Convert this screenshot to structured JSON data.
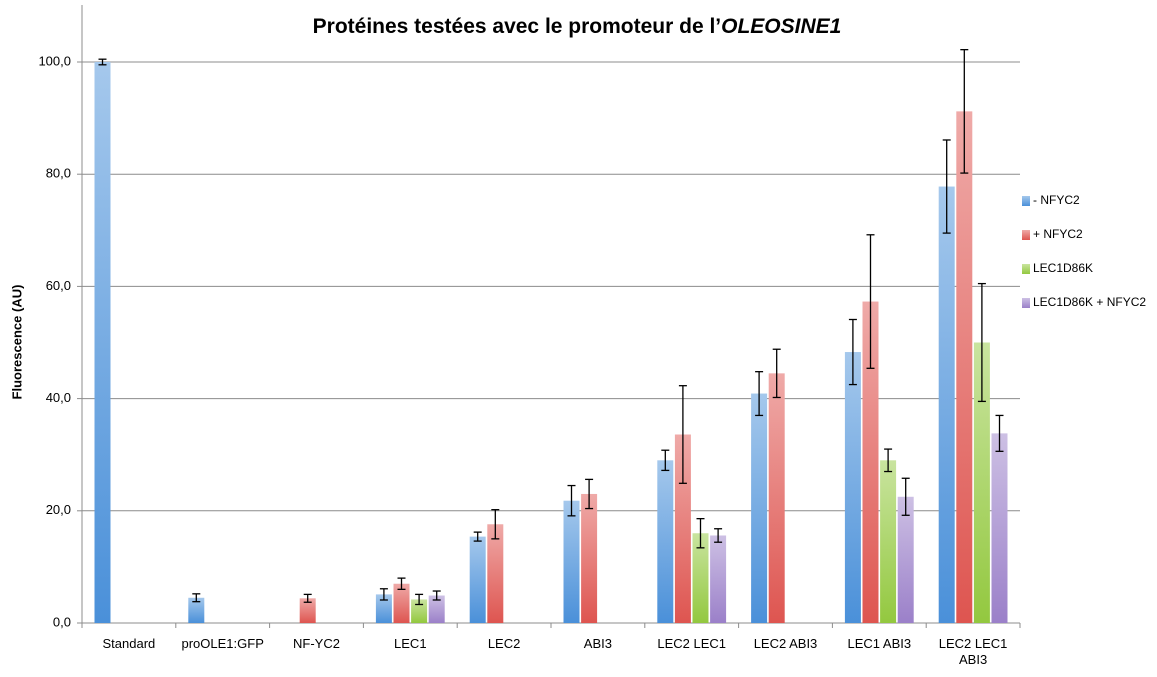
{
  "chart_data": {
    "type": "bar",
    "title": [
      "Protéines testées avec le promoteur de l’",
      "OLEOSINE1"
    ],
    "y_label": "Fluorescence (AU)",
    "categories": [
      "Standard",
      "proOLE1:GFP",
      "NF-YC2",
      "LEC1",
      "LEC2",
      "ABI3",
      "LEC2 LEC1",
      "LEC2 ABI3",
      "LEC1 ABI3",
      "LEC2 LEC1 ABI3"
    ],
    "series": [
      {
        "name": "- NFYC2",
        "color": "#4a90d9",
        "values": [
          100,
          4.5,
          null,
          5.1,
          15.4,
          21.8,
          29.0,
          40.9,
          48.3,
          77.8
        ],
        "errors": [
          0.5,
          0.7,
          null,
          1.0,
          0.8,
          2.7,
          1.8,
          3.9,
          5.8,
          8.3
        ]
      },
      {
        "name": "+ NFYC2",
        "color": "#de5550",
        "values": [
          null,
          null,
          4.4,
          7.0,
          17.6,
          23.0,
          33.6,
          44.5,
          57.3,
          91.2
        ],
        "errors": [
          null,
          null,
          0.7,
          1.0,
          2.6,
          2.6,
          8.7,
          4.3,
          11.9,
          11.0
        ]
      },
      {
        "name": "LEC1D86K",
        "color": "#93c83f",
        "values": [
          null,
          null,
          null,
          4.2,
          null,
          null,
          16.0,
          null,
          29.0,
          50.0
        ],
        "errors": [
          null,
          null,
          null,
          0.9,
          null,
          null,
          2.6,
          null,
          2.0,
          10.5
        ]
      },
      {
        "name": "LEC1D86K + NFYC2",
        "color": "#9b80c9",
        "values": [
          null,
          null,
          null,
          4.9,
          null,
          null,
          15.6,
          null,
          22.5,
          33.8
        ],
        "errors": [
          null,
          null,
          null,
          0.8,
          null,
          null,
          1.2,
          null,
          3.3,
          3.2
        ]
      }
    ],
    "ylim": [
      0,
      100
    ],
    "yticks": [
      {
        "value": 0,
        "label": "0,0"
      },
      {
        "value": 20,
        "label": "20,0"
      },
      {
        "value": 40,
        "label": "40,0"
      },
      {
        "value": 60,
        "label": "60,0"
      },
      {
        "value": 80,
        "label": "80,0"
      },
      {
        "value": 100,
        "label": "100,0"
      }
    ],
    "grid": true,
    "legend": "right"
  }
}
